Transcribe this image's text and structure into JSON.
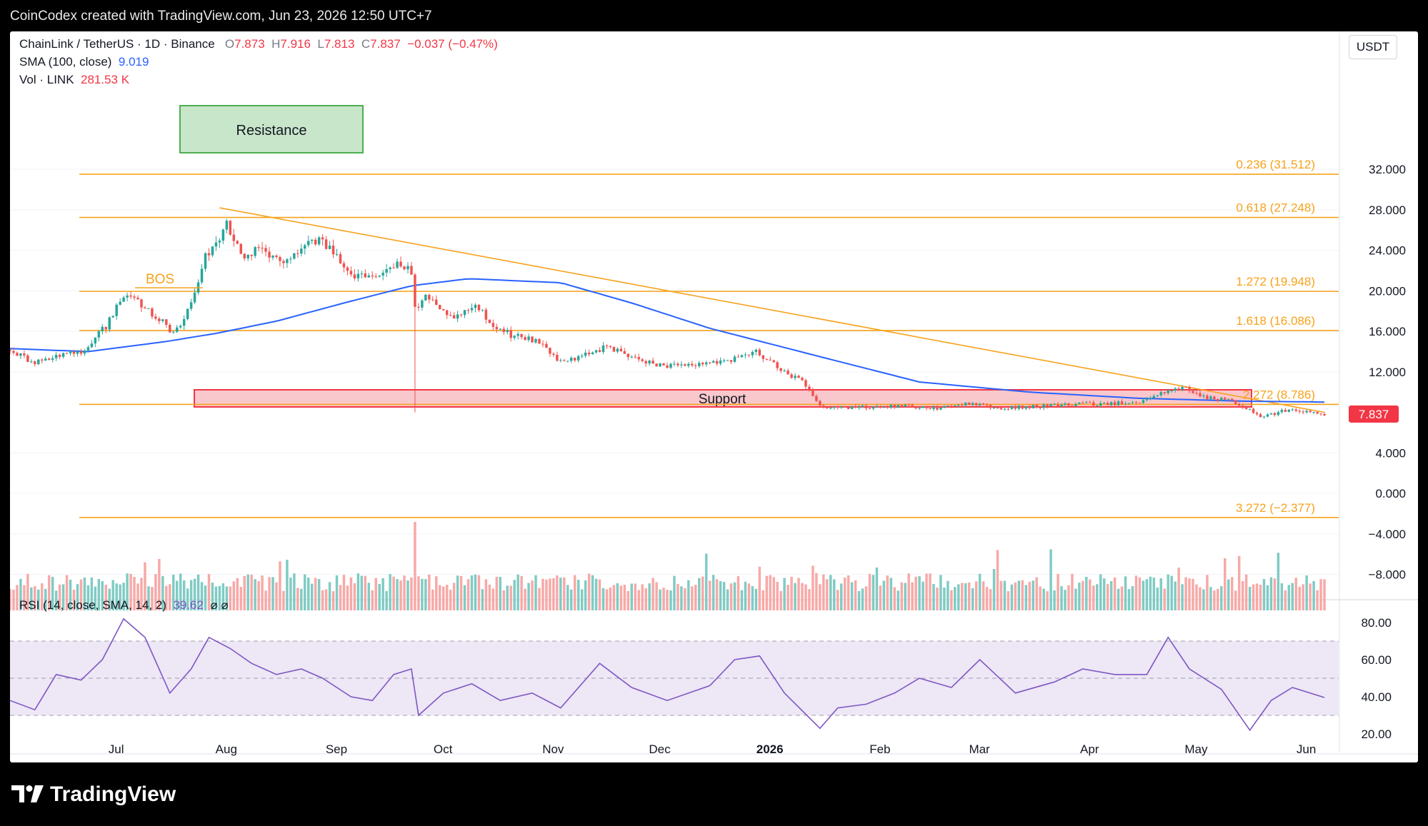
{
  "header": {
    "caption": "CoinCodex created with TradingView.com, Jun 23, 2026 12:50 UTC+7"
  },
  "footer": {
    "brand": "TradingView",
    "logo_icon": "tradingview-logo-icon"
  },
  "legend": {
    "symbol": "ChainLink / TetherUS · 1D · Binance",
    "o_label": "O",
    "o": "7.873",
    "h_label": "H",
    "h": "7.916",
    "l_label": "L",
    "l": "7.813",
    "c_label": "C",
    "c": "7.837",
    "change": "−0.037 (−0.47%)",
    "sma_label": "SMA (100, close)",
    "sma_value": "9.019",
    "vol_label": "Vol · LINK",
    "vol_value": "281.53 K",
    "rsi_label": "RSI (14, close, SMA, 14, 2)",
    "rsi_value": "39.62",
    "rsi_extra": "⌀ ⌀"
  },
  "currency": "USDT",
  "price_tag": "7.837",
  "colors": {
    "up": "#26a69a",
    "down": "#ef5350",
    "sma": "#2962ff",
    "fib": "#f7a21b",
    "rsi": "#7e57c2",
    "support": "#f23645",
    "resistance": "#4caf50"
  },
  "chart_data": {
    "type": "candlestick",
    "x_range": [
      "2025-06-18",
      "2026-06-23"
    ],
    "price_axis": {
      "ticks": [
        "32.000",
        "28.000",
        "24.000",
        "20.000",
        "16.000",
        "12.000",
        "4.000",
        "0.000",
        "−4.000",
        "−8.000"
      ],
      "ylim": [
        -10,
        38
      ]
    },
    "time_axis": {
      "ticks": [
        "Jul",
        "Aug",
        "Sep",
        "Oct",
        "Nov",
        "Dec",
        "2026",
        "Feb",
        "Mar",
        "Apr",
        "May",
        "Jun"
      ]
    },
    "fib_levels": [
      {
        "label": "0.236 (31.512)",
        "value": 31.512
      },
      {
        "label": "0.618 (27.248)",
        "value": 27.248
      },
      {
        "label": "1.272 (19.948)",
        "value": 19.948
      },
      {
        "label": "1.618 (16.086)",
        "value": 16.086
      },
      {
        "label": "2.272 (8.786)",
        "value": 8.786
      },
      {
        "label": "3.272 (−2.377)",
        "value": -2.377
      }
    ],
    "zones": {
      "resistance": {
        "label": "Resistance",
        "from": "2025-08-01",
        "to": "2025-09-20",
        "low": 28.5,
        "high": 32.5
      },
      "support": {
        "label": "Support",
        "from": "2025-08-05",
        "to": "2026-05-30",
        "low": 5.5,
        "high": 7.0
      }
    },
    "annotations": [
      {
        "label": "BOS",
        "date": "2025-07-24",
        "price": 20.3
      }
    ],
    "trendline": {
      "from": {
        "date": "2025-08-16",
        "price": 28.2
      },
      "to": {
        "date": "2026-06-23",
        "price": 8.0
      }
    },
    "price_path": [
      [
        "2025-06-18",
        14.2
      ],
      [
        "2025-06-25",
        12.8
      ],
      [
        "2025-07-01",
        13.6
      ],
      [
        "2025-07-08",
        14.0
      ],
      [
        "2025-07-15",
        16.5
      ],
      [
        "2025-07-20",
        19.5
      ],
      [
        "2025-07-27",
        18.2
      ],
      [
        "2025-08-03",
        15.8
      ],
      [
        "2025-08-08",
        18.5
      ],
      [
        "2025-08-12",
        23.5
      ],
      [
        "2025-08-18",
        26.5
      ],
      [
        "2025-08-22",
        23.5
      ],
      [
        "2025-08-28",
        24.0
      ],
      [
        "2025-09-03",
        22.5
      ],
      [
        "2025-09-10",
        25.0
      ],
      [
        "2025-09-16",
        24.5
      ],
      [
        "2025-09-22",
        21.5
      ],
      [
        "2025-09-28",
        21.0
      ],
      [
        "2025-10-04",
        22.5
      ],
      [
        "2025-10-09",
        22.0
      ],
      [
        "2025-10-10",
        18.5
      ],
      [
        "2025-10-14",
        19.5
      ],
      [
        "2025-10-20",
        17.5
      ],
      [
        "2025-10-27",
        18.5
      ],
      [
        "2025-11-03",
        16.0
      ],
      [
        "2025-11-08",
        15.5
      ],
      [
        "2025-11-14",
        15.0
      ],
      [
        "2025-11-20",
        13.0
      ],
      [
        "2025-11-26",
        13.5
      ],
      [
        "2025-12-03",
        14.5
      ],
      [
        "2025-12-10",
        13.5
      ],
      [
        "2025-12-17",
        12.8
      ],
      [
        "2025-12-24",
        12.5
      ],
      [
        "2026-01-01",
        12.8
      ],
      [
        "2026-01-08",
        13.3
      ],
      [
        "2026-01-14",
        14.0
      ],
      [
        "2026-01-20",
        12.5
      ],
      [
        "2026-01-27",
        11.0
      ],
      [
        "2026-02-02",
        8.3
      ],
      [
        "2026-02-06",
        8.4
      ],
      [
        "2026-02-15",
        8.5
      ],
      [
        "2026-02-25",
        8.6
      ],
      [
        "2026-03-05",
        8.4
      ],
      [
        "2026-03-15",
        8.9
      ],
      [
        "2026-03-25",
        8.4
      ],
      [
        "2026-04-04",
        8.6
      ],
      [
        "2026-04-14",
        8.8
      ],
      [
        "2026-04-24",
        8.9
      ],
      [
        "2026-05-02",
        9.0
      ],
      [
        "2026-05-08",
        10.0
      ],
      [
        "2026-05-14",
        10.5
      ],
      [
        "2026-05-20",
        9.5
      ],
      [
        "2026-05-27",
        9.2
      ],
      [
        "2026-06-02",
        8.2
      ],
      [
        "2026-06-05",
        7.5
      ],
      [
        "2026-06-12",
        8.2
      ],
      [
        "2026-06-18",
        8.0
      ],
      [
        "2026-06-23",
        7.84
      ]
    ],
    "sma_path": [
      [
        "2025-06-18",
        14.3
      ],
      [
        "2025-07-10",
        14.0
      ],
      [
        "2025-08-01",
        15.0
      ],
      [
        "2025-08-15",
        15.8
      ],
      [
        "2025-09-01",
        17.0
      ],
      [
        "2025-09-20",
        18.8
      ],
      [
        "2025-10-09",
        20.5
      ],
      [
        "2025-10-25",
        21.2
      ],
      [
        "2025-11-20",
        20.8
      ],
      [
        "2025-12-10",
        18.8
      ],
      [
        "2026-01-01",
        16.3
      ],
      [
        "2026-02-01",
        13.5
      ],
      [
        "2026-03-01",
        11.0
      ],
      [
        "2026-04-01",
        10.0
      ],
      [
        "2026-05-01",
        9.4
      ],
      [
        "2026-06-01",
        9.1
      ],
      [
        "2026-06-23",
        9.02
      ]
    ],
    "rsi_axis": {
      "ticks": [
        "80.00",
        "60.00",
        "40.00",
        "20.00"
      ],
      "ylim": [
        10,
        90
      ],
      "band": [
        30,
        70
      ],
      "mid": 50
    },
    "rsi_path": [
      [
        "2025-06-18",
        38
      ],
      [
        "2025-06-25",
        33
      ],
      [
        "2025-07-01",
        52
      ],
      [
        "2025-07-08",
        49
      ],
      [
        "2025-07-14",
        60
      ],
      [
        "2025-07-20",
        82
      ],
      [
        "2025-07-26",
        72
      ],
      [
        "2025-08-02",
        42
      ],
      [
        "2025-08-08",
        55
      ],
      [
        "2025-08-13",
        72
      ],
      [
        "2025-08-19",
        66
      ],
      [
        "2025-08-25",
        58
      ],
      [
        "2025-09-01",
        52
      ],
      [
        "2025-09-08",
        55
      ],
      [
        "2025-09-14",
        50
      ],
      [
        "2025-09-22",
        40
      ],
      [
        "2025-09-28",
        38
      ],
      [
        "2025-10-04",
        52
      ],
      [
        "2025-10-09",
        55
      ],
      [
        "2025-10-11",
        30
      ],
      [
        "2025-10-18",
        42
      ],
      [
        "2025-10-26",
        47
      ],
      [
        "2025-11-03",
        38
      ],
      [
        "2025-11-12",
        42
      ],
      [
        "2025-11-20",
        34
      ],
      [
        "2025-12-01",
        58
      ],
      [
        "2025-12-10",
        45
      ],
      [
        "2025-12-20",
        38
      ],
      [
        "2026-01-01",
        46
      ],
      [
        "2026-01-08",
        60
      ],
      [
        "2026-01-15",
        62
      ],
      [
        "2026-01-22",
        42
      ],
      [
        "2026-02-01",
        23
      ],
      [
        "2026-02-06",
        34
      ],
      [
        "2026-02-14",
        36
      ],
      [
        "2026-02-22",
        42
      ],
      [
        "2026-03-01",
        50
      ],
      [
        "2026-03-10",
        45
      ],
      [
        "2026-03-18",
        60
      ],
      [
        "2026-03-28",
        42
      ],
      [
        "2026-04-08",
        48
      ],
      [
        "2026-04-16",
        55
      ],
      [
        "2026-04-25",
        52
      ],
      [
        "2026-05-04",
        52
      ],
      [
        "2026-05-10",
        72
      ],
      [
        "2026-05-16",
        55
      ],
      [
        "2026-05-25",
        44
      ],
      [
        "2026-06-02",
        22
      ],
      [
        "2026-06-08",
        38
      ],
      [
        "2026-06-14",
        45
      ],
      [
        "2026-06-23",
        39.62
      ]
    ]
  }
}
